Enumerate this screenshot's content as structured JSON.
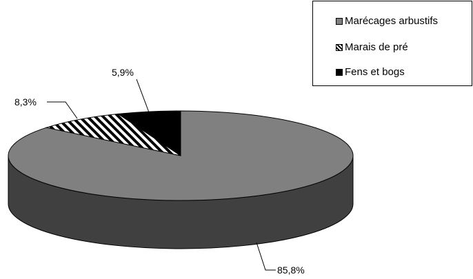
{
  "chart_data": {
    "type": "pie",
    "style": "3d",
    "title": "",
    "slices": [
      {
        "name": "Marécages arbustifs",
        "value": 85.8,
        "label": "85,8%",
        "color": "#808080",
        "side_color": "#404040",
        "pattern": "solid"
      },
      {
        "name": "Marais de pré",
        "value": 8.3,
        "label": "8,3%",
        "color": "#ffffff",
        "side_color": "#000000",
        "pattern": "diagonal-stripes"
      },
      {
        "name": "Fens et bogs",
        "value": 5.9,
        "label": "5,9%",
        "color": "#000000",
        "side_color": "#000000",
        "pattern": "solid"
      }
    ],
    "legend": {
      "position": "top-right",
      "entries": [
        "Marécages arbustifs",
        "Marais de pré",
        "Fens et bogs"
      ]
    }
  }
}
